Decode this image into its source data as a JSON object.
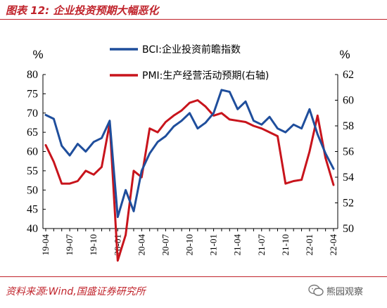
{
  "figure": {
    "title": "图表 12:  企业投资预期大幅恶化",
    "source": "资料来源:Wind,国盛证券研究所",
    "watermark": "熊园观察"
  },
  "colors": {
    "bci": "#1f4e9c",
    "pmi": "#c8141c",
    "accent": "#c0232b"
  },
  "chart_data": {
    "type": "line",
    "x": [
      "19-04",
      "19-05",
      "19-06",
      "19-07",
      "19-08",
      "19-09",
      "19-10",
      "19-11",
      "19-12",
      "20-01",
      "20-02",
      "20-03",
      "20-04",
      "20-05",
      "20-06",
      "20-07",
      "20-08",
      "20-09",
      "20-10",
      "20-11",
      "20-12",
      "21-01",
      "21-02",
      "21-03",
      "21-04",
      "21-05",
      "21-06",
      "21-07",
      "21-08",
      "21-09",
      "21-10",
      "21-11",
      "21-12",
      "22-01",
      "22-02",
      "22-03",
      "22-04"
    ],
    "xticks": [
      "19-04",
      "19-07",
      "19-10",
      "20-01",
      "20-04",
      "20-07",
      "20-10",
      "21-01",
      "21-04",
      "21-07",
      "21-10",
      "22-01",
      "22-04"
    ],
    "y_left_unit": "%",
    "y_right_unit": "%",
    "ylim_left": [
      40,
      80
    ],
    "yticks_left": [
      40,
      45,
      50,
      55,
      60,
      65,
      70,
      75,
      80
    ],
    "ylim_right": [
      50,
      62
    ],
    "yticks_right": [
      50,
      52,
      54,
      56,
      58,
      60,
      62
    ],
    "grid": false,
    "legend_position": "top",
    "series": [
      {
        "name": "BCI:企业投资前瞻指数",
        "axis": "left",
        "color": "#1f4e9c",
        "values": [
          69.5,
          68.5,
          61.5,
          59,
          62,
          60,
          62.5,
          63.5,
          68,
          43,
          50,
          44.5,
          55,
          59.5,
          62.5,
          64,
          66.5,
          68,
          70,
          66,
          67.5,
          70,
          76,
          75.5,
          71,
          73,
          68,
          67,
          69,
          66,
          65,
          67,
          66,
          71,
          64.5,
          59.5,
          55.5
        ]
      },
      {
        "name": "PMI:生产经营活动预期(右轴)",
        "axis": "right",
        "color": "#c8141c",
        "values": [
          56.5,
          55.2,
          53.5,
          53.5,
          53.7,
          54.5,
          54.2,
          54.8,
          58.2,
          47.5,
          49.5,
          54.5,
          54,
          57.8,
          57.5,
          58.3,
          58.8,
          59.2,
          59.8,
          60,
          59.5,
          58.8,
          59,
          58.5,
          58.4,
          58.3,
          58,
          57.8,
          57.5,
          57.2,
          53.5,
          53.7,
          53.8,
          56,
          58.8,
          55.5,
          53.4
        ]
      }
    ]
  }
}
